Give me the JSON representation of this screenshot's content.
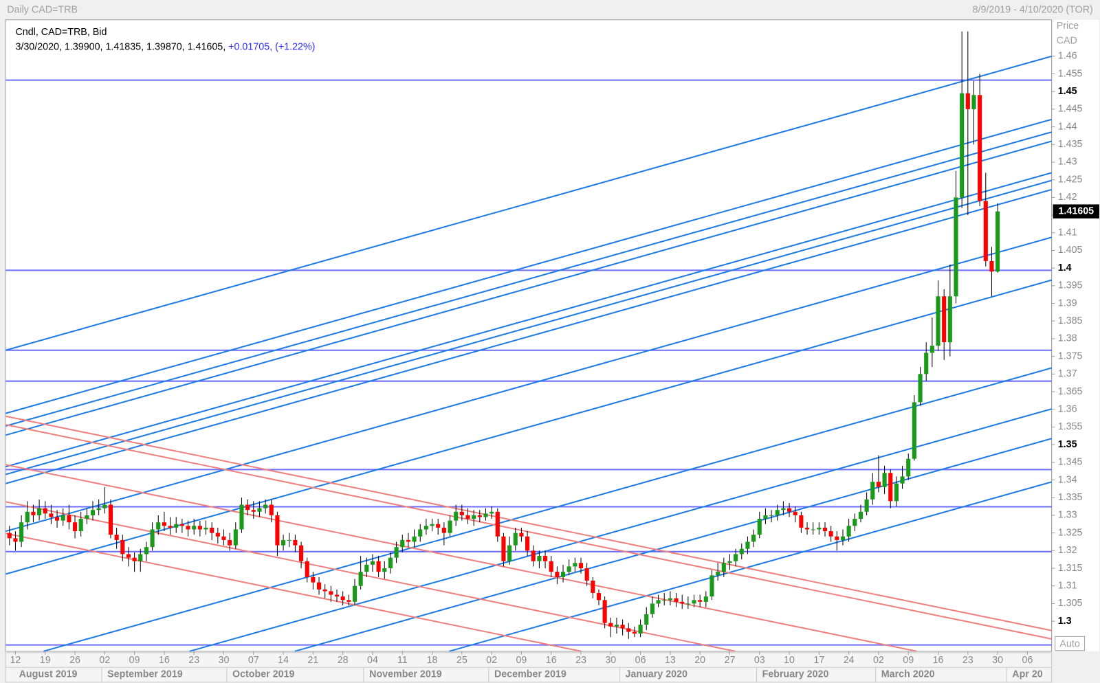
{
  "chart_data": {
    "type": "candlestick",
    "title": "Daily CAD=TRB",
    "subtitle": "8/9/2019 - 4/10/2020 (TOR)",
    "legend": [
      "Cndl, CAD=TRB, Bid",
      "3/30/2020, 1.39900, 1.41835, 1.39870, 1.41605,",
      "+0.01705, (+1.22%)"
    ],
    "y_axis_label": "Price",
    "y_axis_unit": "CAD",
    "autoscale_label": "Auto",
    "up_color": "#1a9a1a",
    "down_color": "#ff0000",
    "ylim": [
      1.2915,
      1.4703
    ],
    "yticks": [
      1.3,
      1.305,
      1.31,
      1.315,
      1.32,
      1.325,
      1.33,
      1.335,
      1.34,
      1.345,
      1.35,
      1.355,
      1.36,
      1.365,
      1.37,
      1.375,
      1.38,
      1.385,
      1.39,
      1.395,
      1.4,
      1.405,
      1.41,
      1.415,
      1.42,
      1.425,
      1.43,
      1.435,
      1.44,
      1.445,
      1.45,
      1.455,
      1.46
    ],
    "xticks": [
      {
        "value": "2019-08-12",
        "label": "12"
      },
      {
        "value": "2019-08-19",
        "label": "19"
      },
      {
        "value": "2019-08-26",
        "label": "26"
      },
      {
        "value": "2019-09-02",
        "label": "02"
      },
      {
        "value": "2019-09-09",
        "label": "09"
      },
      {
        "value": "2019-09-16",
        "label": "16"
      },
      {
        "value": "2019-09-23",
        "label": "23"
      },
      {
        "value": "2019-09-30",
        "label": "30"
      },
      {
        "value": "2019-10-07",
        "label": "07"
      },
      {
        "value": "2019-10-14",
        "label": "14"
      },
      {
        "value": "2019-10-21",
        "label": "21"
      },
      {
        "value": "2019-10-28",
        "label": "28"
      },
      {
        "value": "2019-11-04",
        "label": "04"
      },
      {
        "value": "2019-11-11",
        "label": "11"
      },
      {
        "value": "2019-11-18",
        "label": "18"
      },
      {
        "value": "2019-11-25",
        "label": "25"
      },
      {
        "value": "2019-12-02",
        "label": "02"
      },
      {
        "value": "2019-12-09",
        "label": "09"
      },
      {
        "value": "2019-12-16",
        "label": "16"
      },
      {
        "value": "2019-12-23",
        "label": "23"
      },
      {
        "value": "2019-12-30",
        "label": "30"
      },
      {
        "value": "2020-01-06",
        "label": "06"
      },
      {
        "value": "2020-01-13",
        "label": "13"
      },
      {
        "value": "2020-01-20",
        "label": "20"
      },
      {
        "value": "2020-01-27",
        "label": "27"
      },
      {
        "value": "2020-02-03",
        "label": "03"
      },
      {
        "value": "2020-02-10",
        "label": "10"
      },
      {
        "value": "2020-02-17",
        "label": "17"
      },
      {
        "value": "2020-02-24",
        "label": "24"
      },
      {
        "value": "2020-03-02",
        "label": "02"
      },
      {
        "value": "2020-03-09",
        "label": "09"
      },
      {
        "value": "2020-03-16",
        "label": "16"
      },
      {
        "value": "2020-03-23",
        "label": "23"
      },
      {
        "value": "2020-03-30",
        "label": "30"
      },
      {
        "value": "2020-04-06",
        "label": "06"
      }
    ],
    "months": [
      {
        "value": "2019-08",
        "label": "August 2019"
      },
      {
        "value": "2019-09",
        "label": "September 2019"
      },
      {
        "value": "2019-10",
        "label": "October 2019"
      },
      {
        "value": "2019-11",
        "label": "November 2019"
      },
      {
        "value": "2019-12",
        "label": "December 2019"
      },
      {
        "value": "2020-01",
        "label": "January 2020"
      },
      {
        "value": "2020-02",
        "label": "February 2020"
      },
      {
        "value": "2020-03",
        "label": "March 2020"
      },
      {
        "value": "2020-04",
        "label": "Apr 20"
      }
    ],
    "x": [
      "2019-08-09",
      "2019-08-12",
      "2019-08-13",
      "2019-08-14",
      "2019-08-15",
      "2019-08-16",
      "2019-08-19",
      "2019-08-20",
      "2019-08-21",
      "2019-08-22",
      "2019-08-23",
      "2019-08-26",
      "2019-08-27",
      "2019-08-28",
      "2019-08-29",
      "2019-08-30",
      "2019-09-02",
      "2019-09-03",
      "2019-09-04",
      "2019-09-05",
      "2019-09-06",
      "2019-09-09",
      "2019-09-10",
      "2019-09-11",
      "2019-09-12",
      "2019-09-13",
      "2019-09-16",
      "2019-09-17",
      "2019-09-18",
      "2019-09-19",
      "2019-09-20",
      "2019-09-23",
      "2019-09-24",
      "2019-09-25",
      "2019-09-26",
      "2019-09-27",
      "2019-09-30",
      "2019-10-01",
      "2019-10-02",
      "2019-10-03",
      "2019-10-04",
      "2019-10-07",
      "2019-10-08",
      "2019-10-09",
      "2019-10-10",
      "2019-10-11",
      "2019-10-14",
      "2019-10-15",
      "2019-10-16",
      "2019-10-17",
      "2019-10-18",
      "2019-10-21",
      "2019-10-22",
      "2019-10-23",
      "2019-10-24",
      "2019-10-25",
      "2019-10-28",
      "2019-10-29",
      "2019-10-30",
      "2019-10-31",
      "2019-11-01",
      "2019-11-04",
      "2019-11-05",
      "2019-11-06",
      "2019-11-07",
      "2019-11-08",
      "2019-11-11",
      "2019-11-12",
      "2019-11-13",
      "2019-11-14",
      "2019-11-15",
      "2019-11-18",
      "2019-11-19",
      "2019-11-20",
      "2019-11-21",
      "2019-11-22",
      "2019-11-25",
      "2019-11-26",
      "2019-11-27",
      "2019-11-28",
      "2019-11-29",
      "2019-12-02",
      "2019-12-03",
      "2019-12-04",
      "2019-12-05",
      "2019-12-06",
      "2019-12-09",
      "2019-12-10",
      "2019-12-11",
      "2019-12-12",
      "2019-12-13",
      "2019-12-16",
      "2019-12-17",
      "2019-12-18",
      "2019-12-19",
      "2019-12-20",
      "2019-12-23",
      "2019-12-24",
      "2019-12-25",
      "2019-12-26",
      "2019-12-27",
      "2019-12-30",
      "2019-12-31",
      "2020-01-01",
      "2020-01-02",
      "2020-01-03",
      "2020-01-06",
      "2020-01-07",
      "2020-01-08",
      "2020-01-09",
      "2020-01-10",
      "2020-01-13",
      "2020-01-14",
      "2020-01-15",
      "2020-01-16",
      "2020-01-17",
      "2020-01-20",
      "2020-01-21",
      "2020-01-22",
      "2020-01-23",
      "2020-01-24",
      "2020-01-27",
      "2020-01-28",
      "2020-01-29",
      "2020-01-30",
      "2020-01-31",
      "2020-02-03",
      "2020-02-04",
      "2020-02-05",
      "2020-02-06",
      "2020-02-07",
      "2020-02-10",
      "2020-02-11",
      "2020-02-12",
      "2020-02-13",
      "2020-02-14",
      "2020-02-17",
      "2020-02-18",
      "2020-02-19",
      "2020-02-20",
      "2020-02-21",
      "2020-02-24",
      "2020-02-25",
      "2020-02-26",
      "2020-02-27",
      "2020-02-28",
      "2020-03-02",
      "2020-03-03",
      "2020-03-04",
      "2020-03-05",
      "2020-03-06",
      "2020-03-09",
      "2020-03-10",
      "2020-03-11",
      "2020-03-12",
      "2020-03-13",
      "2020-03-16",
      "2020-03-17",
      "2020-03-18",
      "2020-03-19",
      "2020-03-20",
      "2020-03-23",
      "2020-03-24",
      "2020-03-25",
      "2020-03-26",
      "2020-03-27",
      "2020-03-30"
    ],
    "open": [
      1.325,
      1.3235,
      1.3225,
      1.328,
      1.331,
      1.33,
      1.332,
      1.3305,
      1.3295,
      1.3285,
      1.33,
      1.328,
      1.3255,
      1.329,
      1.33,
      1.3315,
      1.332,
      1.333,
      1.3245,
      1.323,
      1.319,
      1.318,
      1.317,
      1.319,
      1.321,
      1.326,
      1.328,
      1.327,
      1.3265,
      1.3275,
      1.327,
      1.326,
      1.327,
      1.326,
      1.3265,
      1.325,
      1.324,
      1.323,
      1.3215,
      1.326,
      1.333,
      1.3315,
      1.331,
      1.332,
      1.333,
      1.33,
      1.3215,
      1.323,
      1.323,
      1.3215,
      1.317,
      1.3125,
      1.311,
      1.309,
      1.3085,
      1.3075,
      1.307,
      1.306,
      1.3055,
      1.31,
      1.314,
      1.316,
      1.317,
      1.314,
      1.315,
      1.318,
      1.321,
      1.323,
      1.3225,
      1.324,
      1.326,
      1.327,
      1.3275,
      1.3265,
      1.325,
      1.3285,
      1.331,
      1.33,
      1.329,
      1.33,
      1.3295,
      1.3305,
      1.331,
      1.324,
      1.317,
      1.3215,
      1.325,
      1.324,
      1.32,
      1.317,
      1.3185,
      1.317,
      1.314,
      1.3125,
      1.314,
      1.3155,
      1.3165,
      1.315,
      1.3115,
      1.308,
      1.306,
      1.2995,
      1.2985,
      1.299,
      1.298,
      1.297,
      1.2965,
      1.299,
      1.302,
      1.305,
      1.306,
      1.306,
      1.3065,
      1.3055,
      1.305,
      1.305,
      1.306,
      1.3055,
      1.307,
      1.313,
      1.314,
      1.3165,
      1.317,
      1.319,
      1.3205,
      1.3225,
      1.3245,
      1.329,
      1.33,
      1.33,
      1.3315,
      1.332,
      1.331,
      1.33,
      1.3265,
      1.326,
      1.326,
      1.3265,
      1.3255,
      1.324,
      1.323,
      1.324,
      1.327,
      1.329,
      1.331,
      1.3345,
      1.3395,
      1.338,
      1.342,
      1.334,
      1.339,
      1.341,
      1.346,
      1.362,
      1.37,
      1.376,
      1.378,
      1.392,
      1.379,
      1.392,
      1.42,
      1.4495,
      1.445,
      1.449,
      1.419,
      1.402,
      1.399
    ],
    "high": [
      1.327,
      1.3255,
      1.33,
      1.334,
      1.333,
      1.3345,
      1.334,
      1.333,
      1.3315,
      1.332,
      1.333,
      1.33,
      1.331,
      1.332,
      1.334,
      1.3345,
      1.338,
      1.3345,
      1.3265,
      1.3245,
      1.321,
      1.3195,
      1.3205,
      1.3225,
      1.328,
      1.33,
      1.331,
      1.3295,
      1.3295,
      1.329,
      1.3285,
      1.329,
      1.3285,
      1.3285,
      1.328,
      1.3265,
      1.326,
      1.325,
      1.328,
      1.335,
      1.3345,
      1.334,
      1.334,
      1.3345,
      1.3345,
      1.331,
      1.3245,
      1.325,
      1.3245,
      1.3225,
      1.318,
      1.314,
      1.3125,
      1.3105,
      1.31,
      1.309,
      1.3085,
      1.3075,
      1.312,
      1.3185,
      1.318,
      1.319,
      1.3185,
      1.317,
      1.3195,
      1.3225,
      1.3245,
      1.325,
      1.326,
      1.3275,
      1.329,
      1.329,
      1.329,
      1.328,
      1.33,
      1.333,
      1.333,
      1.332,
      1.3315,
      1.3315,
      1.332,
      1.3325,
      1.332,
      1.325,
      1.324,
      1.3265,
      1.3265,
      1.3255,
      1.3215,
      1.32,
      1.32,
      1.3185,
      1.3155,
      1.316,
      1.3175,
      1.318,
      1.318,
      1.3165,
      1.3125,
      1.309,
      1.307,
      1.301,
      1.301,
      1.3005,
      1.2995,
      1.2985,
      1.3005,
      1.304,
      1.307,
      1.3075,
      1.308,
      1.3085,
      1.308,
      1.3075,
      1.307,
      1.3075,
      1.3075,
      1.3085,
      1.3145,
      1.3165,
      1.318,
      1.319,
      1.3205,
      1.322,
      1.324,
      1.326,
      1.331,
      1.332,
      1.3315,
      1.333,
      1.334,
      1.3335,
      1.3325,
      1.331,
      1.328,
      1.328,
      1.328,
      1.328,
      1.327,
      1.3255,
      1.326,
      1.329,
      1.3305,
      1.333,
      1.3365,
      1.342,
      1.347,
      1.344,
      1.343,
      1.341,
      1.344,
      1.3475,
      1.364,
      1.372,
      1.379,
      1.386,
      1.3965,
      1.394,
      1.401,
      1.4275,
      1.467,
      1.467,
      1.453,
      1.455,
      1.427,
      1.406,
      1.41835
    ],
    "low": [
      1.3215,
      1.32,
      1.321,
      1.326,
      1.328,
      1.3285,
      1.329,
      1.3275,
      1.3265,
      1.327,
      1.326,
      1.3235,
      1.324,
      1.3275,
      1.3285,
      1.33,
      1.3305,
      1.3235,
      1.3205,
      1.317,
      1.3155,
      1.314,
      1.314,
      1.317,
      1.32,
      1.3245,
      1.3255,
      1.3245,
      1.325,
      1.325,
      1.324,
      1.3245,
      1.324,
      1.3245,
      1.323,
      1.322,
      1.3215,
      1.32,
      1.3205,
      1.325,
      1.33,
      1.329,
      1.3295,
      1.3305,
      1.328,
      1.3185,
      1.32,
      1.321,
      1.3195,
      1.315,
      1.311,
      1.309,
      1.3075,
      1.3065,
      1.3055,
      1.3055,
      1.3045,
      1.3045,
      1.3045,
      1.309,
      1.3125,
      1.314,
      1.3125,
      1.312,
      1.3135,
      1.3165,
      1.3195,
      1.321,
      1.321,
      1.3225,
      1.3245,
      1.3255,
      1.3245,
      1.3215,
      1.324,
      1.327,
      1.3285,
      1.3275,
      1.327,
      1.328,
      1.3285,
      1.329,
      1.3225,
      1.3155,
      1.316,
      1.32,
      1.3225,
      1.3185,
      1.3155,
      1.315,
      1.315,
      1.3125,
      1.3105,
      1.311,
      1.313,
      1.314,
      1.3135,
      1.31,
      1.3065,
      1.3045,
      1.298,
      1.2955,
      1.2965,
      1.296,
      1.295,
      1.2955,
      1.2955,
      1.2975,
      1.301,
      1.304,
      1.3045,
      1.3045,
      1.304,
      1.3035,
      1.3035,
      1.304,
      1.304,
      1.304,
      1.306,
      1.3115,
      1.3125,
      1.3145,
      1.3155,
      1.3175,
      1.319,
      1.321,
      1.3235,
      1.3275,
      1.328,
      1.3285,
      1.33,
      1.3295,
      1.328,
      1.325,
      1.3245,
      1.3245,
      1.3245,
      1.324,
      1.3225,
      1.32,
      1.3215,
      1.3225,
      1.3255,
      1.328,
      1.33,
      1.333,
      1.3365,
      1.336,
      1.332,
      1.3325,
      1.3375,
      1.34,
      1.3455,
      1.361,
      1.368,
      1.372,
      1.3765,
      1.374,
      1.375,
      1.39,
      1.417,
      1.415,
      1.435,
      1.4175,
      1.4005,
      1.392,
      1.3987
    ],
    "close": [
      1.3235,
      1.3225,
      1.328,
      1.331,
      1.33,
      1.332,
      1.3305,
      1.3295,
      1.3285,
      1.33,
      1.328,
      1.3255,
      1.329,
      1.33,
      1.3315,
      1.332,
      1.333,
      1.3245,
      1.323,
      1.319,
      1.318,
      1.317,
      1.319,
      1.321,
      1.326,
      1.328,
      1.327,
      1.3265,
      1.3275,
      1.327,
      1.326,
      1.327,
      1.326,
      1.3265,
      1.325,
      1.324,
      1.323,
      1.3215,
      1.326,
      1.333,
      1.3315,
      1.331,
      1.332,
      1.333,
      1.33,
      1.3215,
      1.323,
      1.323,
      1.3215,
      1.317,
      1.3125,
      1.311,
      1.309,
      1.3085,
      1.3075,
      1.307,
      1.306,
      1.3055,
      1.31,
      1.314,
      1.316,
      1.317,
      1.314,
      1.315,
      1.318,
      1.321,
      1.323,
      1.3225,
      1.324,
      1.326,
      1.327,
      1.3275,
      1.3265,
      1.325,
      1.3285,
      1.331,
      1.33,
      1.329,
      1.33,
      1.3295,
      1.3305,
      1.331,
      1.324,
      1.317,
      1.3215,
      1.325,
      1.324,
      1.32,
      1.317,
      1.3185,
      1.317,
      1.314,
      1.3125,
      1.314,
      1.3155,
      1.3165,
      1.315,
      1.3115,
      1.308,
      1.306,
      1.2995,
      1.2985,
      1.299,
      1.298,
      1.297,
      1.2965,
      1.299,
      1.302,
      1.305,
      1.306,
      1.306,
      1.3065,
      1.3055,
      1.305,
      1.305,
      1.306,
      1.3055,
      1.307,
      1.313,
      1.314,
      1.3165,
      1.317,
      1.319,
      1.3205,
      1.3225,
      1.3245,
      1.329,
      1.33,
      1.33,
      1.3315,
      1.332,
      1.331,
      1.33,
      1.3265,
      1.326,
      1.326,
      1.3265,
      1.3255,
      1.324,
      1.323,
      1.324,
      1.327,
      1.329,
      1.331,
      1.3345,
      1.3395,
      1.338,
      1.342,
      1.334,
      1.339,
      1.341,
      1.346,
      1.362,
      1.37,
      1.376,
      1.378,
      1.392,
      1.379,
      1.392,
      1.42,
      1.4495,
      1.445,
      1.449,
      1.419,
      1.402,
      1.399,
      1.41605
    ]
  }
}
